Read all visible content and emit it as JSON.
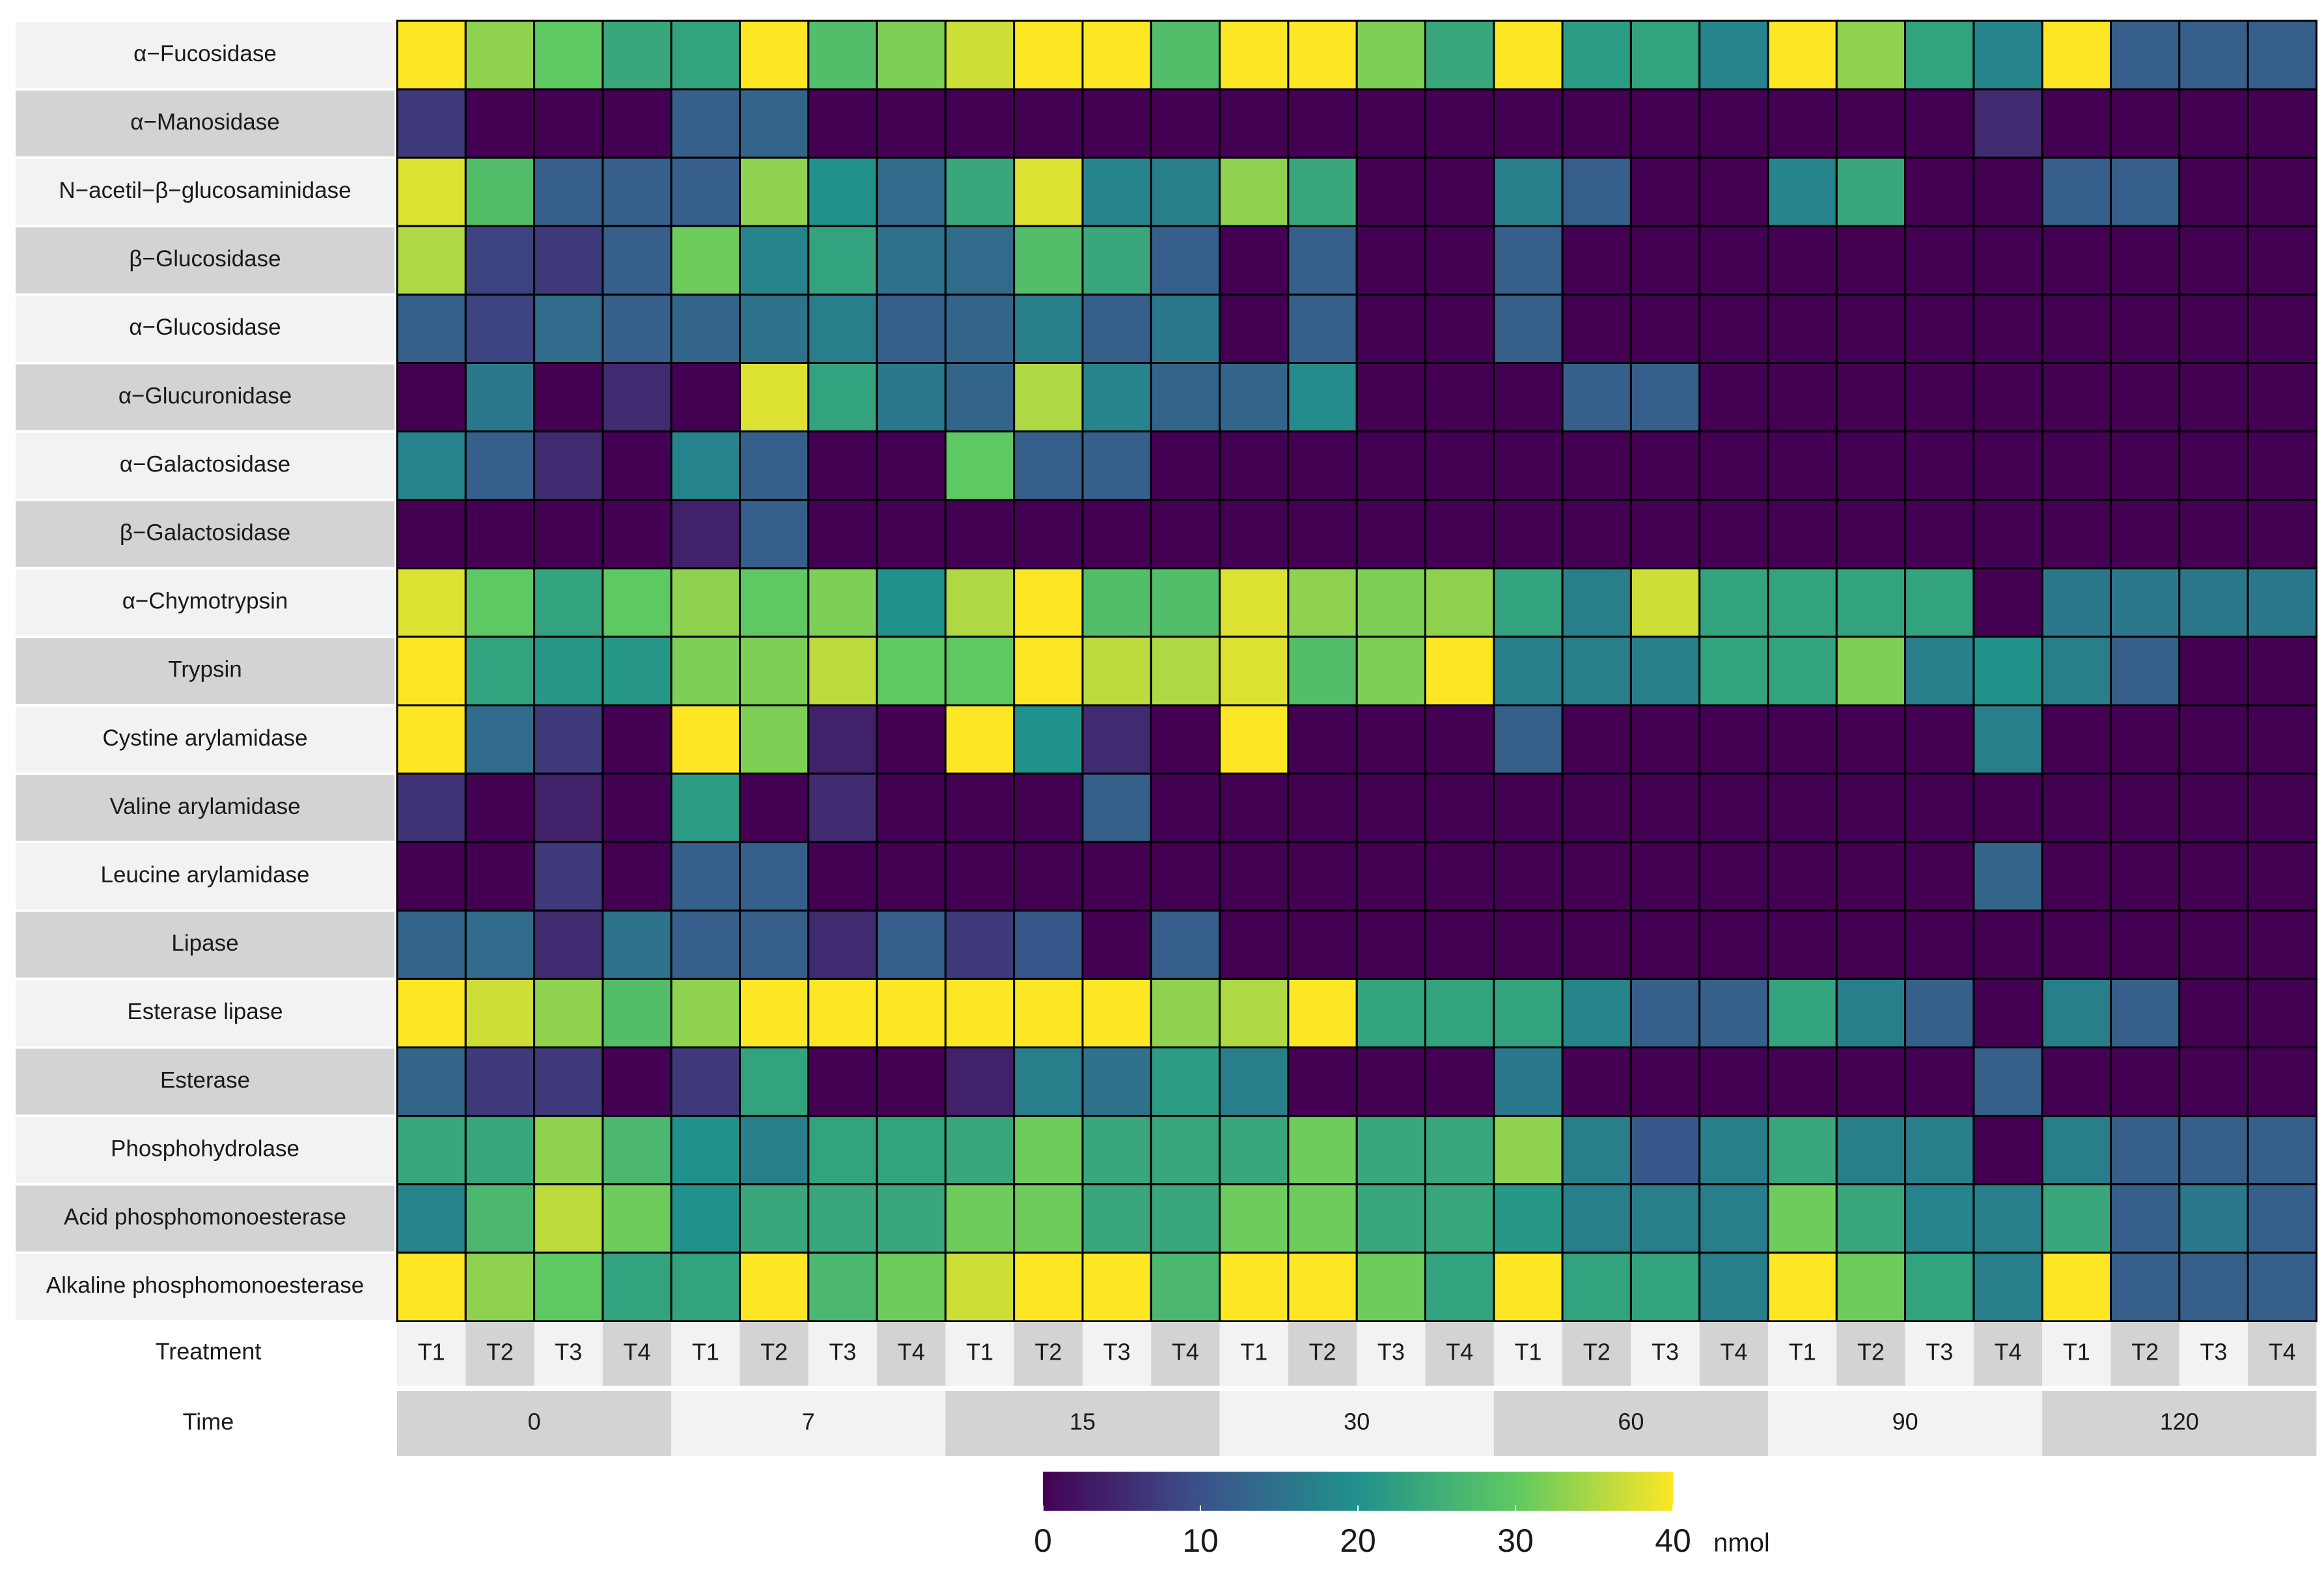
{
  "chart_data": {
    "type": "heatmap",
    "value_unit": "nmol",
    "scale_range": [
      0,
      40
    ],
    "colorbar": {
      "ticks": [
        0,
        10,
        20,
        30,
        40
      ],
      "unit_label": "nmol",
      "colors": [
        "#440154",
        "#3b528b",
        "#21918c",
        "#5ec962",
        "#fde725"
      ]
    },
    "row_labels": [
      "α−Fucosidase",
      "α−Manosidase",
      "N−acetil−β−glucosaminidase",
      "β−Glucosidase",
      "α−Glucosidase",
      "α−Glucuronidase",
      "α−Galactosidase",
      "β−Galactosidase",
      "α−Chymotrypsin",
      "Trypsin",
      "Cystine arylamidase",
      "Valine arylamidase",
      "Leucine arylamidase",
      "Lipase",
      "Esterase lipase",
      "Esterase",
      "Phosphohydrolase",
      "Acid phosphomonoesterase",
      "Alkaline phosphomonoesterase"
    ],
    "treatment_label": "Treatment",
    "time_label": "Time",
    "treatments": [
      "T1",
      "T2",
      "T3",
      "T4",
      "T1",
      "T2",
      "T3",
      "T4",
      "T1",
      "T2",
      "T3",
      "T4",
      "T1",
      "T2",
      "T3",
      "T4",
      "T1",
      "T2",
      "T3",
      "T4",
      "T1",
      "T2",
      "T3",
      "T4",
      "T1",
      "T2",
      "T3",
      "T4"
    ],
    "times": [
      "0",
      "7",
      "15",
      "30",
      "60",
      "90",
      "120"
    ],
    "values": [
      [
        40,
        33,
        30,
        24,
        23,
        40,
        28,
        32,
        37,
        40,
        40,
        28,
        40,
        40,
        32,
        24,
        40,
        22,
        23,
        18,
        40,
        33,
        23,
        18,
        40,
        12,
        12,
        12
      ],
      [
        7,
        0,
        0,
        0,
        12,
        13,
        0,
        0,
        0,
        0,
        0,
        0,
        0,
        0,
        0,
        0,
        0,
        0,
        0,
        0,
        0,
        0,
        0,
        5,
        0,
        0,
        0,
        0
      ],
      [
        38,
        28,
        12,
        12,
        12,
        33,
        20,
        14,
        24,
        38,
        18,
        17,
        33,
        24,
        0,
        0,
        17,
        12,
        0,
        0,
        18,
        24,
        0,
        0,
        12,
        12,
        0,
        0
      ],
      [
        35,
        8,
        7,
        12,
        31,
        18,
        23,
        15,
        14,
        28,
        24,
        12,
        0,
        12,
        0,
        0,
        12,
        0,
        0,
        0,
        0,
        0,
        0,
        0,
        0,
        0,
        0,
        0
      ],
      [
        12,
        8,
        14,
        12,
        13,
        15,
        17,
        12,
        13,
        17,
        12,
        16,
        0,
        12,
        0,
        0,
        12,
        0,
        0,
        0,
        0,
        0,
        0,
        0,
        0,
        0,
        0,
        0
      ],
      [
        0,
        16,
        0,
        5,
        0,
        38,
        23,
        16,
        13,
        35,
        18,
        13,
        13,
        19,
        0,
        0,
        0,
        12,
        12,
        0,
        0,
        0,
        0,
        0,
        0,
        0,
        0,
        0
      ],
      [
        18,
        12,
        5,
        0,
        18,
        12,
        0,
        0,
        30,
        12,
        12,
        0,
        0,
        0,
        0,
        0,
        0,
        0,
        0,
        0,
        0,
        0,
        0,
        0,
        0,
        0,
        0,
        0
      ],
      [
        0,
        0,
        0,
        0,
        4,
        12,
        0,
        0,
        0,
        0,
        0,
        0,
        0,
        0,
        0,
        0,
        0,
        0,
        0,
        0,
        0,
        0,
        0,
        0,
        0,
        0,
        0,
        0
      ],
      [
        38,
        30,
        23,
        30,
        33,
        30,
        32,
        20,
        35,
        40,
        28,
        28,
        38,
        33,
        32,
        33,
        23,
        17,
        37,
        23,
        23,
        23,
        23,
        0,
        16,
        16,
        16,
        16
      ],
      [
        40,
        23,
        21,
        21,
        32,
        32,
        36,
        30,
        30,
        40,
        36,
        35,
        38,
        28,
        32,
        40,
        17,
        17,
        17,
        23,
        23,
        32,
        17,
        20,
        17,
        12,
        0,
        0
      ],
      [
        40,
        14,
        7,
        0,
        40,
        32,
        4,
        0,
        40,
        20,
        5,
        0,
        40,
        0,
        0,
        0,
        12,
        0,
        0,
        0,
        0,
        0,
        0,
        17,
        0,
        0,
        0,
        0
      ],
      [
        6,
        0,
        4,
        0,
        22,
        0,
        5,
        0,
        0,
        0,
        12,
        0,
        0,
        0,
        0,
        0,
        0,
        0,
        0,
        0,
        0,
        0,
        0,
        0,
        0,
        0,
        0,
        0
      ],
      [
        0,
        0,
        7,
        0,
        12,
        12,
        0,
        0,
        0,
        0,
        0,
        0,
        0,
        0,
        0,
        0,
        0,
        0,
        0,
        0,
        0,
        0,
        0,
        13,
        0,
        0,
        0,
        0
      ],
      [
        13,
        14,
        5,
        15,
        12,
        12,
        5,
        12,
        7,
        11,
        0,
        12,
        0,
        0,
        0,
        0,
        0,
        0,
        0,
        0,
        0,
        0,
        0,
        0,
        0,
        0,
        0,
        0
      ],
      [
        40,
        37,
        33,
        28,
        33,
        40,
        40,
        40,
        40,
        40,
        40,
        33,
        35,
        40,
        23,
        23,
        23,
        18,
        12,
        12,
        23,
        17,
        12,
        0,
        17,
        12,
        0,
        0
      ],
      [
        13,
        7,
        7,
        0,
        7,
        23,
        0,
        0,
        4,
        17,
        15,
        22,
        17,
        0,
        0,
        0,
        16,
        0,
        0,
        0,
        0,
        0,
        0,
        12,
        0,
        0,
        0,
        0
      ],
      [
        24,
        24,
        33,
        27,
        20,
        17,
        23,
        23,
        24,
        31,
        24,
        24,
        24,
        31,
        24,
        24,
        33,
        17,
        11,
        17,
        24,
        17,
        17,
        0,
        17,
        12,
        12,
        12
      ],
      [
        18,
        27,
        36,
        31,
        20,
        24,
        24,
        24,
        31,
        31,
        24,
        24,
        31,
        31,
        24,
        24,
        21,
        17,
        17,
        17,
        31,
        24,
        18,
        17,
        24,
        12,
        16,
        12
      ],
      [
        40,
        33,
        30,
        23,
        23,
        40,
        27,
        31,
        37,
        40,
        40,
        27,
        40,
        40,
        31,
        23,
        40,
        23,
        23,
        17,
        40,
        31,
        23,
        17,
        40,
        12,
        12,
        12
      ]
    ]
  }
}
